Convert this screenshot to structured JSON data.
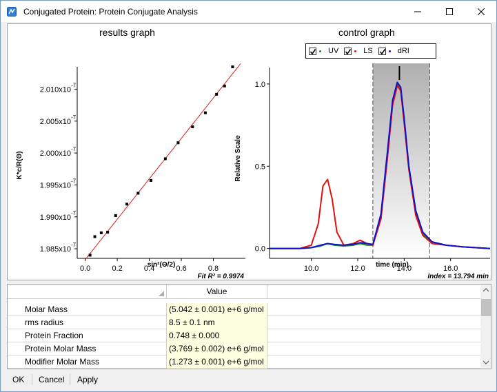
{
  "window": {
    "title": "Conjugated Protein: Protein Conjugate Analysis",
    "controls": {
      "minimize": "minimize-icon",
      "maximize": "maximize-icon",
      "close": "close-icon"
    }
  },
  "results_graph": {
    "title": "results graph",
    "fit_label": "Fit R² = 0.9974"
  },
  "control_graph": {
    "title": "control graph",
    "index_label": "Index = 13.794 min",
    "legend": [
      {
        "label": "UV",
        "color": "#1a8a1a",
        "checked": true
      },
      {
        "label": "LS",
        "color": "#e01010",
        "checked": true
      },
      {
        "label": "dRI",
        "color": "#1010d0",
        "checked": true
      }
    ]
  },
  "chart_data": [
    {
      "type": "scatter",
      "title": "results graph",
      "xlabel": "sin²(Θ/2)",
      "ylabel": "K*c/R(Θ)",
      "xlim": [
        -0.05,
        1.0
      ],
      "ylim": [
        1.9835e-07,
        2.0135e-07
      ],
      "xticks": [
        0.0,
        0.2,
        0.4,
        0.6,
        0.8
      ],
      "xtick_labels": [
        "0.0",
        "0.2",
        "0.4",
        "0.6",
        "0.8"
      ],
      "yticks": [
        1.985e-07,
        1.99e-07,
        1.995e-07,
        2e-07,
        2.005e-07,
        2.01e-07
      ],
      "ytick_labels": [
        "1.985x10",
        "1.990x10",
        "1.995x10",
        "2.000x10",
        "2.005x10",
        "2.010x10"
      ],
      "ytick_exponent": "-7",
      "points": {
        "x": [
          0.03,
          0.06,
          0.1,
          0.14,
          0.19,
          0.26,
          0.33,
          0.41,
          0.5,
          0.58,
          0.67,
          0.75,
          0.82,
          0.87,
          0.92
        ],
        "y": [
          1.984e-07,
          1.9869e-07,
          1.9875e-07,
          1.9876e-07,
          1.9902e-07,
          1.992e-07,
          1.9937e-07,
          1.9957e-07,
          1.9991e-07,
          2.0016e-07,
          2.0041e-07,
          2.0063e-07,
          2.0092e-07,
          2.0105e-07,
          2.0135e-07
        ]
      },
      "fit_line": {
        "x": [
          0.0,
          0.97
        ],
        "y": [
          1.9833e-07,
          2.014e-07
        ]
      },
      "grid": false
    },
    {
      "type": "line",
      "title": "control graph",
      "xlabel": "time (min)",
      "ylabel": "Relative Scale",
      "xlim": [
        8.2,
        17.7
      ],
      "ylim": [
        -0.06,
        1.1
      ],
      "xticks": [
        10.0,
        12.0,
        14.0,
        16.0
      ],
      "xtick_labels": [
        "10.0",
        "12.0",
        "14.0",
        "16.0"
      ],
      "yticks": [
        0.0,
        0.5,
        1.0
      ],
      "ytick_labels": [
        "0.0",
        "0.5",
        "1.0"
      ],
      "selection_range": [
        12.65,
        15.1
      ],
      "index_marker": 13.794,
      "series": [
        {
          "name": "UV",
          "color": "#1a8a1a",
          "x": [
            8.2,
            9.5,
            10.0,
            10.4,
            10.7,
            11.0,
            11.4,
            11.8,
            12.1,
            12.4,
            12.65,
            13.0,
            13.3,
            13.5,
            13.7,
            13.85,
            14.0,
            14.2,
            14.5,
            14.8,
            15.2,
            15.8,
            16.5,
            17.7
          ],
          "y": [
            0.0,
            0.0,
            0.005,
            0.015,
            0.03,
            0.02,
            0.015,
            0.02,
            0.03,
            0.02,
            0.02,
            0.2,
            0.6,
            0.88,
            1.0,
            0.97,
            0.78,
            0.5,
            0.22,
            0.09,
            0.04,
            0.02,
            0.01,
            0.0
          ]
        },
        {
          "name": "LS",
          "color": "#e01010",
          "x": [
            8.2,
            9.5,
            10.0,
            10.3,
            10.5,
            10.7,
            10.9,
            11.1,
            11.4,
            11.8,
            12.1,
            12.4,
            12.65,
            13.0,
            13.3,
            13.5,
            13.7,
            13.85,
            14.0,
            14.2,
            14.5,
            14.8,
            15.2,
            15.8,
            16.5,
            17.7
          ],
          "y": [
            0.0,
            0.0,
            0.02,
            0.15,
            0.38,
            0.42,
            0.3,
            0.1,
            0.02,
            0.03,
            0.05,
            0.03,
            0.02,
            0.18,
            0.58,
            0.87,
            0.99,
            0.96,
            0.76,
            0.48,
            0.2,
            0.08,
            0.03,
            0.02,
            0.01,
            0.0
          ]
        },
        {
          "name": "dRI",
          "color": "#1010d0",
          "x": [
            8.2,
            9.5,
            10.0,
            10.4,
            10.7,
            11.0,
            11.4,
            11.8,
            12.1,
            12.4,
            12.65,
            13.0,
            13.3,
            13.5,
            13.7,
            13.85,
            14.0,
            14.2,
            14.5,
            14.8,
            15.2,
            15.8,
            16.5,
            17.7
          ],
          "y": [
            0.0,
            0.0,
            0.005,
            0.02,
            0.03,
            0.025,
            0.02,
            0.025,
            0.035,
            0.03,
            0.025,
            0.21,
            0.62,
            0.9,
            1.01,
            0.98,
            0.79,
            0.5,
            0.23,
            0.1,
            0.04,
            0.02,
            0.01,
            0.0
          ]
        }
      ],
      "grid": false
    }
  ],
  "table": {
    "header": {
      "value": "Value"
    },
    "rows": [
      {
        "name": "Molar Mass",
        "value": "(5.042 ± 0.001) e+6 g/mol"
      },
      {
        "name": "rms radius",
        "value": "8.5 ± 0.1 nm"
      },
      {
        "name": "Protein Fraction",
        "value": "0.748 ± 0.000"
      },
      {
        "name": "Protein Molar Mass",
        "value": "(3.769 ± 0.002) e+6 g/mol"
      },
      {
        "name": "Modifier Molar Mass",
        "value": "(1.273 ± 0.001) e+6 g/mol"
      }
    ]
  },
  "buttons": {
    "ok": "OK",
    "cancel": "Cancel",
    "apply": "Apply"
  }
}
